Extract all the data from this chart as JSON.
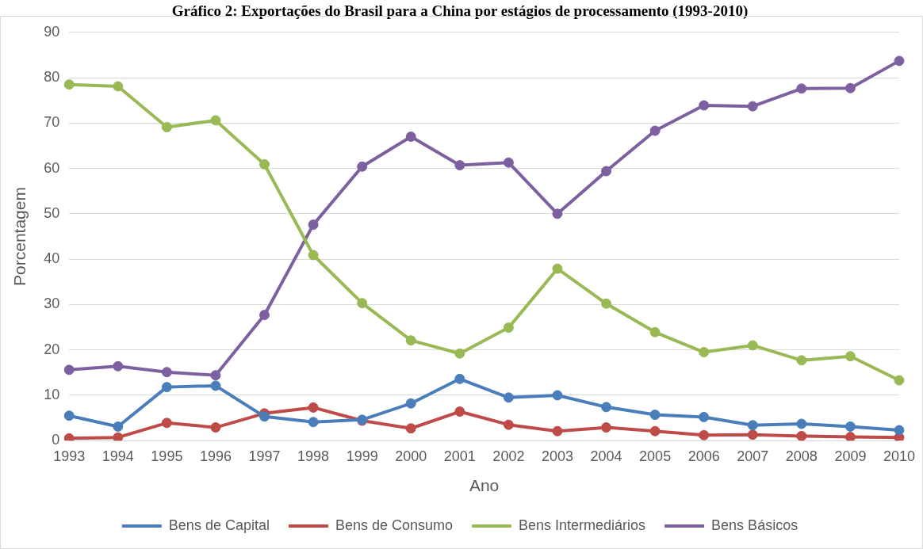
{
  "chart_data": {
    "type": "line",
    "title": "Gráfico 2: Exportações do Brasil para a China por estágios de processamento (1993-2010)",
    "xlabel": "Ano",
    "ylabel": "Porcentagem",
    "categories": [
      "1993",
      "1994",
      "1995",
      "1996",
      "1997",
      "1998",
      "1999",
      "2000",
      "2001",
      "2002",
      "2003",
      "2004",
      "2005",
      "2006",
      "2007",
      "2008",
      "2009",
      "2010"
    ],
    "ylim": [
      0,
      90
    ],
    "yticks": [
      0,
      10,
      20,
      30,
      40,
      50,
      60,
      70,
      80,
      90
    ],
    "grid": "y",
    "legend": "bottom",
    "marker": "circle",
    "line_style": "solid",
    "series": [
      {
        "name": "Bens de Capital",
        "color": "#4a7ebb",
        "values": [
          5.5,
          3.1,
          11.8,
          12.1,
          5.3,
          4.1,
          4.6,
          8.2,
          13.6,
          9.5,
          10.0,
          7.4,
          5.7,
          5.2,
          3.4,
          3.7,
          3.1,
          2.3
        ]
      },
      {
        "name": "Bens de Consumo",
        "color": "#be4b48",
        "values": [
          0.5,
          0.7,
          3.9,
          2.9,
          6.0,
          7.3,
          4.4,
          2.7,
          6.4,
          3.5,
          2.1,
          2.9,
          2.1,
          1.2,
          1.3,
          1.0,
          0.8,
          0.7
        ]
      },
      {
        "name": "Bens Intermediários",
        "color": "#98b954",
        "values": [
          78.5,
          78.1,
          69.1,
          70.6,
          60.9,
          40.9,
          30.3,
          22.1,
          19.2,
          24.9,
          37.9,
          30.2,
          23.9,
          19.5,
          21.0,
          17.7,
          18.6,
          13.3
        ]
      },
      {
        "name": "Bens Básicos",
        "color": "#7d60a0",
        "values": [
          15.6,
          16.4,
          15.1,
          14.4,
          27.7,
          47.6,
          60.4,
          67.0,
          60.7,
          61.3,
          50.0,
          59.4,
          68.3,
          73.9,
          73.7,
          77.6,
          77.7,
          83.7
        ]
      }
    ]
  }
}
